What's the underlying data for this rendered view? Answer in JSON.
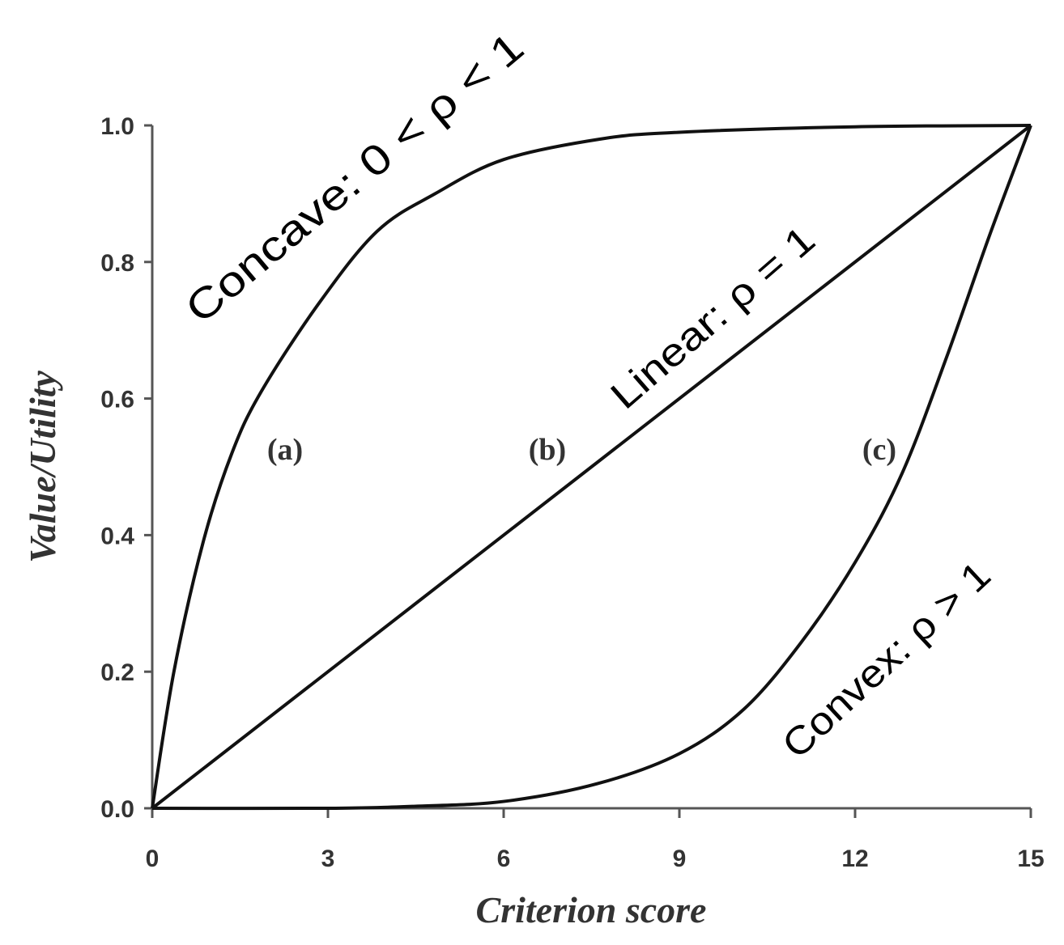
{
  "chart_data": {
    "type": "line",
    "title": "",
    "xlabel": "Criterion score",
    "ylabel": "Value/Utility",
    "xlim": [
      0,
      15
    ],
    "ylim": [
      0,
      1
    ],
    "xticks": [
      "0",
      "3",
      "6",
      "9",
      "12",
      "15"
    ],
    "yticks": [
      "0.0",
      "0.2",
      "0.4",
      "0.6",
      "0.8",
      "1.0"
    ],
    "grid": false,
    "series": [
      {
        "name": "(a)",
        "annotation": "Concave: 0 < ρ < 1",
        "x": [
          0,
          0.37,
          0.87,
          1.36,
          1.86,
          2.85,
          3.84,
          4.83,
          6,
          7.65,
          9,
          12,
          15
        ],
        "y": [
          0,
          0.2,
          0.39,
          0.52,
          0.61,
          0.74,
          0.845,
          0.9,
          0.95,
          0.98,
          0.99,
          0.998,
          1.0
        ]
      },
      {
        "name": "(b)",
        "annotation": "Linear: ρ = 1",
        "x": [
          0,
          15
        ],
        "y": [
          0,
          1.0
        ]
      },
      {
        "name": "(c)",
        "annotation": "Convex: ρ > 1",
        "x": [
          0,
          3,
          4.5,
          6,
          7.6,
          9,
          10.1,
          11.08,
          12,
          12.8,
          13.56,
          14.3,
          15
        ],
        "y": [
          0,
          0.0,
          0.003,
          0.01,
          0.036,
          0.08,
          0.145,
          0.243,
          0.36,
          0.49,
          0.66,
          0.84,
          1.0
        ]
      }
    ]
  }
}
